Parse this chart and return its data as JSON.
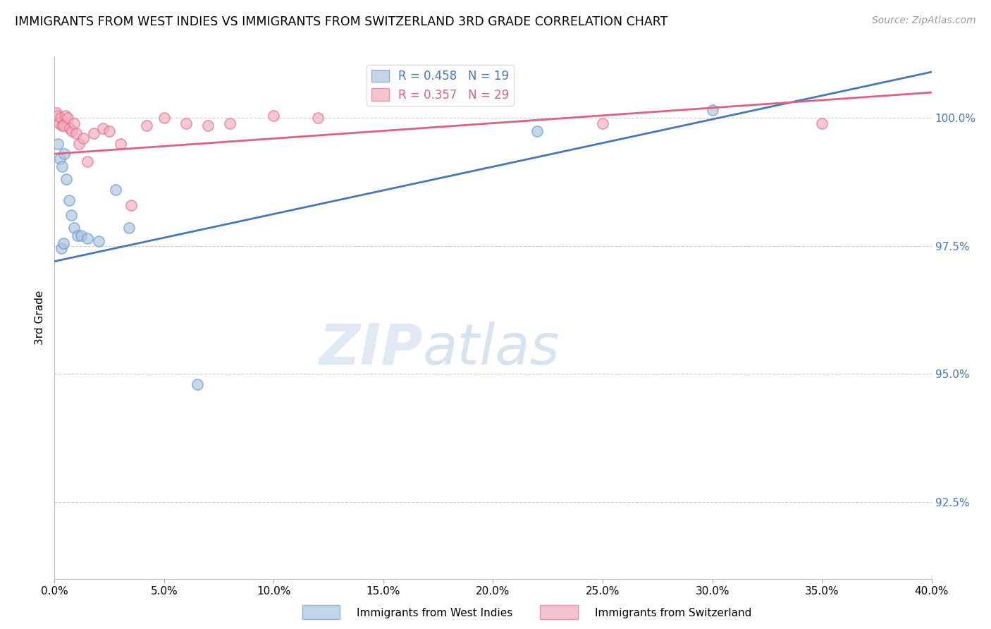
{
  "title": "IMMIGRANTS FROM WEST INDIES VS IMMIGRANTS FROM SWITZERLAND 3RD GRADE CORRELATION CHART",
  "source": "Source: ZipAtlas.com",
  "xlabel_bottom": "Immigrants from West Indies",
  "xlabel_top": "Immigrants from Switzerland",
  "ylabel": "3rd Grade",
  "x_min": 0.0,
  "x_max": 40.0,
  "y_min": 91.0,
  "y_max": 101.2,
  "y_ticks": [
    92.5,
    95.0,
    97.5,
    100.0
  ],
  "x_ticks": [
    0.0,
    5.0,
    10.0,
    15.0,
    20.0,
    25.0,
    30.0,
    35.0,
    40.0
  ],
  "blue_R": 0.458,
  "blue_N": 19,
  "pink_R": 0.357,
  "pink_N": 29,
  "blue_color": "#A8C4E0",
  "pink_color": "#F4AABB",
  "blue_edge_color": "#6699CC",
  "pink_edge_color": "#E07090",
  "blue_line_color": "#4477BB",
  "pink_line_color": "#E06080",
  "blue_data": [
    [
      0.15,
      99.5
    ],
    [
      0.25,
      99.2
    ],
    [
      0.35,
      99.05
    ],
    [
      0.45,
      99.3
    ],
    [
      0.55,
      98.8
    ],
    [
      0.65,
      98.4
    ],
    [
      0.75,
      98.1
    ],
    [
      0.9,
      97.85
    ],
    [
      1.05,
      97.7
    ],
    [
      1.2,
      97.7
    ],
    [
      1.5,
      97.65
    ],
    [
      2.0,
      97.6
    ],
    [
      2.8,
      98.6
    ],
    [
      3.4,
      97.85
    ],
    [
      6.5,
      94.8
    ],
    [
      22.0,
      99.75
    ],
    [
      30.0,
      100.15
    ],
    [
      0.3,
      97.45
    ],
    [
      0.4,
      97.55
    ]
  ],
  "pink_data": [
    [
      0.1,
      100.1
    ],
    [
      0.15,
      100.05
    ],
    [
      0.2,
      99.9
    ],
    [
      0.28,
      100.0
    ],
    [
      0.35,
      99.85
    ],
    [
      0.42,
      99.85
    ],
    [
      0.5,
      100.05
    ],
    [
      0.6,
      100.0
    ],
    [
      0.7,
      99.8
    ],
    [
      0.8,
      99.75
    ],
    [
      0.9,
      99.9
    ],
    [
      1.0,
      99.7
    ],
    [
      1.1,
      99.5
    ],
    [
      1.3,
      99.6
    ],
    [
      1.5,
      99.15
    ],
    [
      1.8,
      99.7
    ],
    [
      2.2,
      99.8
    ],
    [
      2.5,
      99.75
    ],
    [
      3.0,
      99.5
    ],
    [
      3.5,
      98.3
    ],
    [
      4.2,
      99.85
    ],
    [
      5.0,
      100.0
    ],
    [
      6.0,
      99.9
    ],
    [
      7.0,
      99.85
    ],
    [
      8.0,
      99.9
    ],
    [
      10.0,
      100.05
    ],
    [
      12.0,
      100.0
    ],
    [
      25.0,
      99.9
    ],
    [
      35.0,
      99.9
    ]
  ],
  "blue_line_x": [
    0.0,
    40.0
  ],
  "blue_line_y": [
    97.2,
    100.9
  ],
  "pink_line_x": [
    0.0,
    40.0
  ],
  "pink_line_y": [
    99.3,
    100.5
  ],
  "watermark_zip": "ZIP",
  "watermark_atlas": "atlas",
  "background_color": "#FFFFFF",
  "grid_color": "#CCCCCC",
  "scatter_size": 120
}
